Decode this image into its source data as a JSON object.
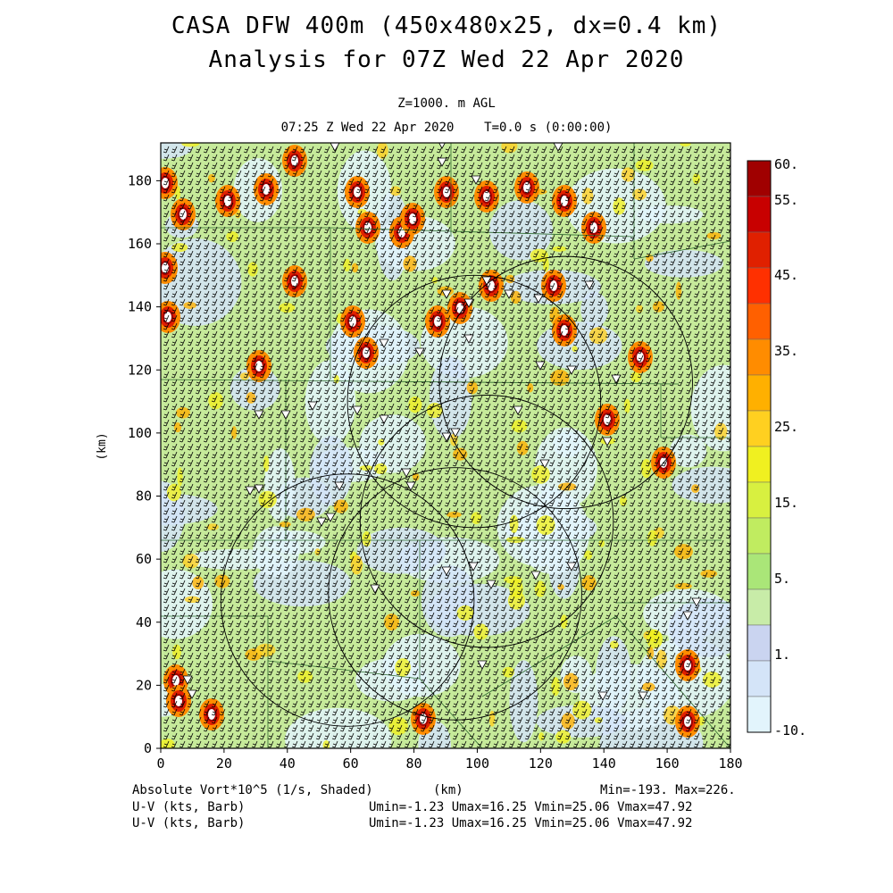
{
  "title_line1": "CASA DFW 400m (450x480x25, dx=0.4 km)",
  "title_line2": "Analysis for 07Z Wed 22 Apr 2020",
  "subtitle_level": "Z=1000. m AGL",
  "subtitle_time": "07:25 Z Wed 22 Apr 2020    T=0.0 s (0:00:00)",
  "x_axis": {
    "label": "(km)",
    "ticks": [
      "0",
      "20",
      "40",
      "60",
      "80",
      "100",
      "120",
      "140",
      "160",
      "180"
    ],
    "range": [
      0,
      180
    ]
  },
  "y_axis": {
    "label": "(km)",
    "ticks": [
      "0",
      "20",
      "40",
      "60",
      "80",
      "100",
      "120",
      "140",
      "160",
      "180"
    ],
    "range": [
      0,
      192
    ]
  },
  "colorbar": {
    "labels": [
      "60.",
      "55.",
      "45.",
      "35.",
      "25.",
      "15.",
      "5.",
      "1.",
      "-10."
    ],
    "colors": [
      "#a00000",
      "#c80000",
      "#e02000",
      "#ff3000",
      "#ff6000",
      "#ff8c00",
      "#ffb000",
      "#ffd020",
      "#f0f020",
      "#d8f040",
      "#c0ec60",
      "#aae678",
      "#c8eca8",
      "#cad4f0",
      "#d4e4f8",
      "#e2f4fc"
    ]
  },
  "footer": {
    "field": "Absolute Vort*10^5 (1/s, Shaded)",
    "units": "(km)",
    "minmax": "Min=-193. Max=226.",
    "wind1_label": "U-V (kts, Barb)",
    "wind1_stats": "Umin=-1.23 Umax=16.25 Vmin=25.06 Vmax=47.92",
    "wind2_label": "U-V (kts, Barb)",
    "wind2_stats": "Umin=-1.23 Umax=16.25 Vmin=25.06 Vmax=47.92"
  },
  "radar_rings_center_km": [
    [
      59,
      47
    ],
    [
      93,
      49
    ],
    [
      103,
      72
    ],
    [
      99,
      110
    ],
    [
      128,
      116
    ]
  ],
  "radar_ring_radius_km": 40
}
